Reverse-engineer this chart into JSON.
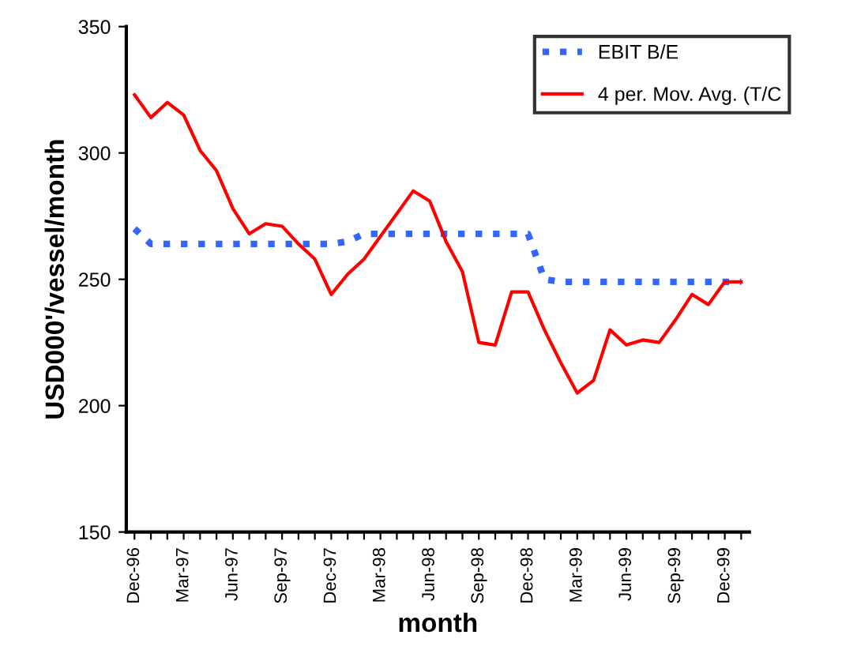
{
  "chart_data": {
    "type": "line",
    "xlabel": "month",
    "ylabel": "USD000'/vessel/month",
    "categories": [
      "Dec-96",
      null,
      null,
      "Mar-97",
      null,
      null,
      "Jun-97",
      null,
      null,
      "Sep-97",
      null,
      null,
      "Dec-97",
      null,
      null,
      "Mar-98",
      null,
      null,
      "Jun-98",
      null,
      null,
      "Sep-98",
      null,
      null,
      "Dec-98",
      null,
      null,
      "Mar-99",
      null,
      null,
      "Jun-99",
      null,
      null,
      "Sep-99",
      null,
      null,
      "Dec-99",
      null
    ],
    "series": [
      {
        "name": "EBIT B/E",
        "color": "#3366ff",
        "line_style": "dotted",
        "values": [
          270,
          264,
          264,
          264,
          264,
          264,
          264,
          264,
          264,
          264,
          264,
          264,
          264,
          265,
          268,
          268,
          268,
          268,
          268,
          268,
          268,
          268,
          268,
          268,
          268,
          250,
          249,
          249,
          249,
          249,
          249,
          249,
          249,
          249,
          249,
          249,
          249,
          249
        ]
      },
      {
        "name": "4 per. Mov. Avg. (T/C",
        "color": "#ff0000",
        "line_style": "solid",
        "values": [
          323,
          314,
          320,
          315,
          301,
          293,
          278,
          268,
          272,
          271,
          264,
          258,
          244,
          252,
          258,
          267,
          276,
          285,
          281,
          265,
          253,
          225,
          224,
          245,
          245,
          230,
          217,
          205,
          210,
          230,
          224,
          226,
          225,
          234,
          244,
          240,
          249,
          249
        ]
      }
    ],
    "ylim": [
      150,
      350
    ],
    "yticks": [
      150,
      200,
      250,
      300,
      350
    ],
    "grid": false,
    "legend": "top right",
    "marker": "none"
  }
}
